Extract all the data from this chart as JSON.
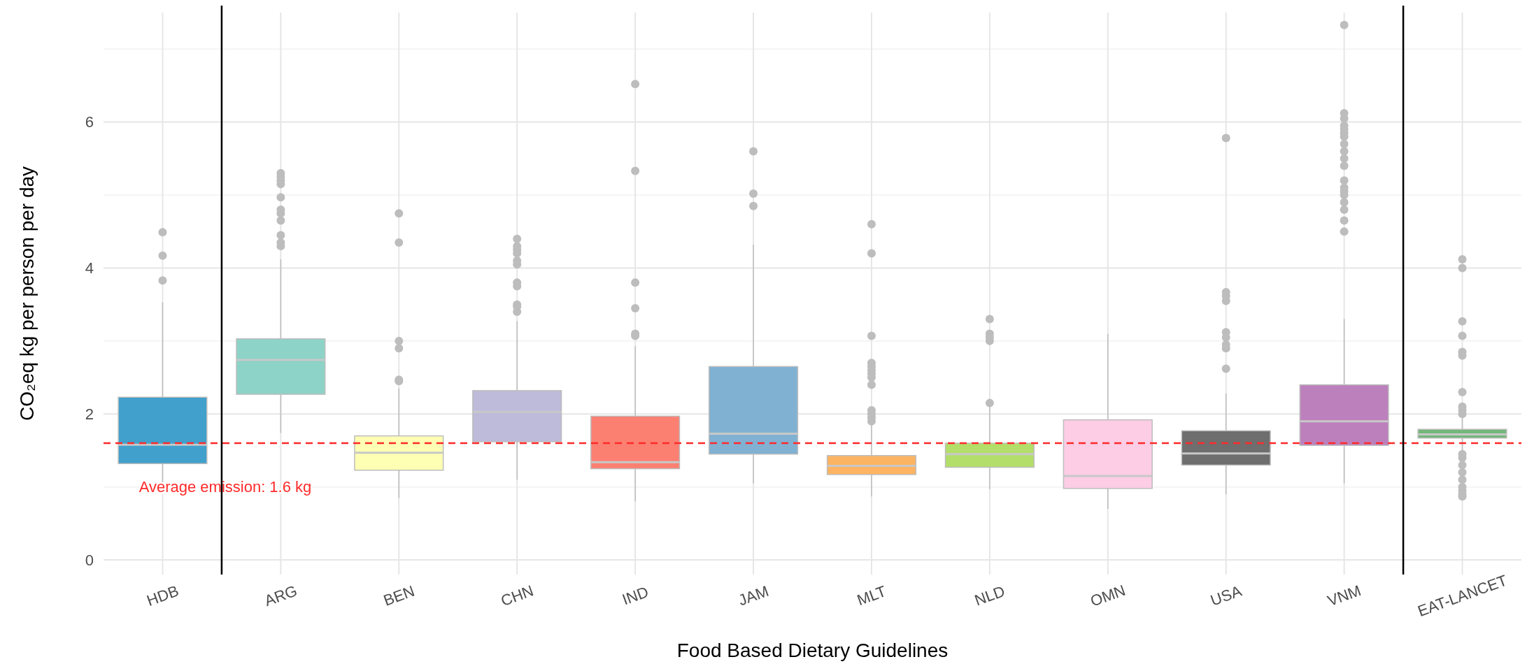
{
  "chart_data": {
    "type": "box",
    "xlabel": "Food Based Dietary Guidelines",
    "ylabel": "CO₂eq kg per person per day",
    "categories": [
      "HDB",
      "ARG",
      "BEN",
      "CHN",
      "IND",
      "JAM",
      "MLT",
      "NLD",
      "OMN",
      "USA",
      "VNM",
      "EAT-LANCET"
    ],
    "colors": [
      "#41a0cc",
      "#8dd3c7",
      "#ffffb3",
      "#bebada",
      "#fb8072",
      "#80b1d3",
      "#fdb462",
      "#b3de69",
      "#fccde5",
      "#6e6e6e",
      "#bc80bd",
      "#74b77a"
    ],
    "boxes": [
      {
        "low": 1.0,
        "q1": 1.32,
        "median": 1.58,
        "q3": 2.23,
        "high": 3.53,
        "outliers": [
          3.83,
          4.17,
          4.49
        ]
      },
      {
        "low": 1.74,
        "q1": 2.27,
        "median": 2.74,
        "q3": 3.03,
        "high": 4.12,
        "outliers": [
          4.3,
          4.35,
          4.45,
          4.65,
          4.75,
          4.8,
          4.97,
          5.15,
          5.2,
          5.25,
          5.3
        ]
      },
      {
        "low": 0.85,
        "q1": 1.23,
        "median": 1.47,
        "q3": 1.7,
        "high": 2.35,
        "outliers": [
          2.45,
          2.47,
          2.9,
          3.0,
          4.35,
          4.75
        ]
      },
      {
        "low": 1.1,
        "q1": 1.62,
        "median": 2.03,
        "q3": 2.32,
        "high": 3.27,
        "outliers": [
          3.4,
          3.47,
          3.5,
          3.75,
          3.8,
          4.05,
          4.1,
          4.2,
          4.25,
          4.3,
          4.4
        ]
      },
      {
        "low": 0.8,
        "q1": 1.25,
        "median": 1.34,
        "q3": 1.97,
        "high": 2.93,
        "outliers": [
          3.07,
          3.1,
          3.45,
          3.8,
          5.33,
          6.52
        ]
      },
      {
        "low": 1.05,
        "q1": 1.45,
        "median": 1.73,
        "q3": 2.65,
        "high": 4.32,
        "outliers": [
          4.85,
          5.02,
          5.6
        ]
      },
      {
        "low": 0.87,
        "q1": 1.17,
        "median": 1.29,
        "q3": 1.43,
        "high": 1.85,
        "outliers": [
          1.9,
          1.95,
          2.0,
          2.05,
          2.4,
          2.5,
          2.55,
          2.6,
          2.65,
          2.7,
          3.07,
          4.2,
          4.6
        ]
      },
      {
        "low": 0.97,
        "q1": 1.27,
        "median": 1.45,
        "q3": 1.6,
        "high": 2.1,
        "outliers": [
          2.15,
          3.0,
          3.05,
          3.1,
          3.3
        ]
      },
      {
        "low": 0.7,
        "q1": 0.98,
        "median": 1.15,
        "q3": 1.92,
        "high": 3.1
      },
      {
        "low": 0.9,
        "q1": 1.3,
        "median": 1.46,
        "q3": 1.77,
        "high": 2.28,
        "outliers": [
          2.62,
          2.9,
          2.95,
          3.05,
          3.12,
          3.55,
          3.62,
          3.67,
          5.78
        ]
      },
      {
        "low": 1.05,
        "q1": 1.57,
        "median": 1.9,
        "q3": 2.4,
        "high": 3.3,
        "outliers": [
          4.5,
          4.65,
          4.8,
          4.9,
          5.0,
          5.05,
          5.1,
          5.2,
          5.4,
          5.5,
          5.6,
          5.7,
          5.8,
          5.85,
          5.9,
          5.95,
          6.05,
          6.12,
          7.33
        ]
      },
      {
        "low": 1.5,
        "q1": 1.67,
        "median": 1.72,
        "q3": 1.79,
        "high": 1.95,
        "outliers": [
          0.87,
          0.9,
          0.95,
          1.0,
          1.1,
          1.2,
          1.3,
          1.4,
          1.45,
          2.0,
          2.05,
          2.1,
          2.3,
          2.8,
          2.85,
          3.07,
          3.27,
          4.0,
          4.12
        ]
      }
    ],
    "ylim": [
      -0.2,
      7.5
    ],
    "yticks": [
      0,
      {
        "value": 1,
        "label": null
      },
      2,
      {
        "value": 3,
        "label": null
      },
      4,
      {
        "value": 5,
        "label": null
      },
      6,
      {
        "value": 7,
        "label": null
      }
    ],
    "grid": true,
    "ref_lines": [
      {
        "axis": "y",
        "value": 1.6,
        "label": "Average emission: 1.6 kg",
        "color": "#ff2a2a",
        "line_style": "dashed"
      }
    ]
  }
}
